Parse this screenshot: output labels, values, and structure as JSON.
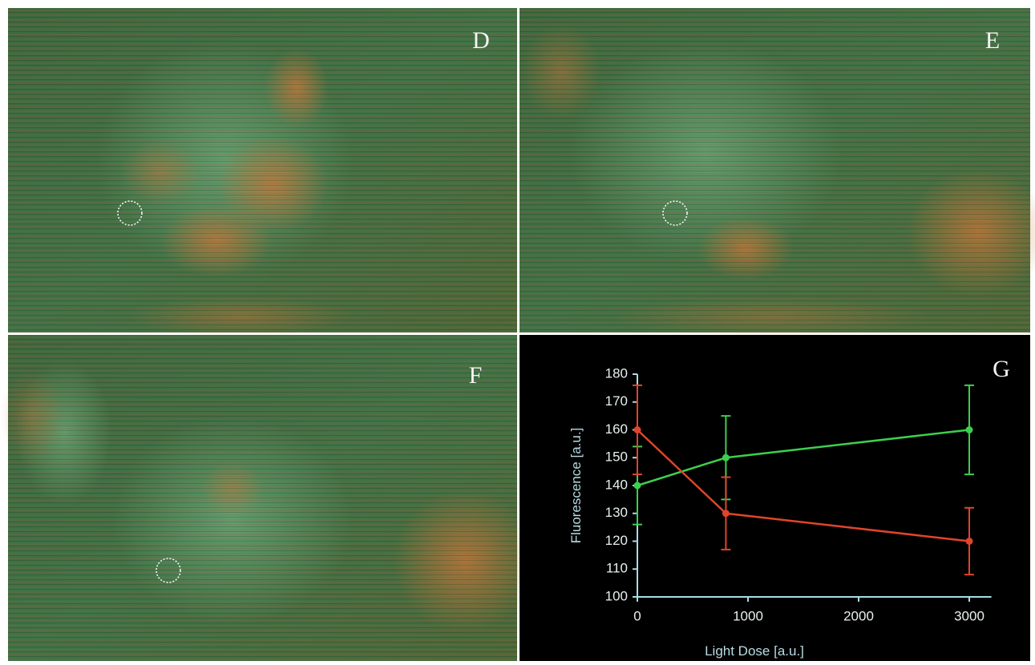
{
  "panels": [
    {
      "label": "D"
    },
    {
      "label": "E"
    },
    {
      "label": "F"
    }
  ],
  "chart_data": {
    "type": "line",
    "label": "G",
    "xlabel": "Light Dose [a.u.]",
    "ylabel": "Fluorescence [a.u.]",
    "x": [
      0,
      800,
      3000
    ],
    "series": [
      {
        "color": "#3ccf4e",
        "values": [
          140,
          150,
          160
        ],
        "errors": [
          14,
          15,
          16
        ]
      },
      {
        "color": "#e0442c",
        "values": [
          160,
          130,
          120
        ],
        "errors": [
          16,
          13,
          12
        ]
      }
    ],
    "xlim": [
      0,
      3200
    ],
    "xticks": [
      0,
      1000,
      2000,
      3000
    ],
    "ylim": [
      100,
      180
    ],
    "yticks": [
      100,
      110,
      120,
      130,
      140,
      150,
      160,
      170,
      180
    ]
  }
}
